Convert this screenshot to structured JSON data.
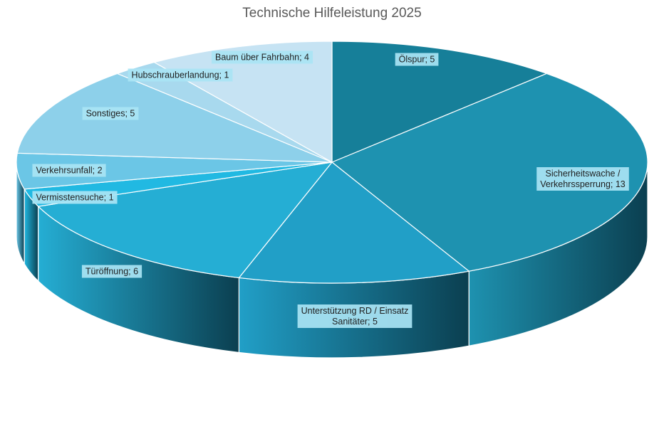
{
  "chart_data": {
    "type": "pie",
    "title": "Technische Hilfeleistung 2025",
    "slices": [
      {
        "label": [
          "Ölspur; 5"
        ],
        "value": 5,
        "color": "#167f99"
      },
      {
        "label": [
          "Sicherheitswache /",
          "Verkehrssperrung; 13"
        ],
        "value": 13,
        "color": "#1e92b0"
      },
      {
        "label": [
          "Unterstützung RD / Einsatz",
          "Sanitäter; 5"
        ],
        "value": 5,
        "color": "#219fc7"
      },
      {
        "label": [
          "Türöffnung; 6"
        ],
        "value": 6,
        "color": "#25aed4"
      },
      {
        "label": [
          "Vermisstensuche; 1"
        ],
        "value": 1,
        "color": "#21b9e2"
      },
      {
        "label": [
          "Verkehrsunfall; 2"
        ],
        "value": 2,
        "color": "#6bc6e6"
      },
      {
        "label": [
          "Sonstiges; 5"
        ],
        "value": 5,
        "color": "#8dd0ea"
      },
      {
        "label": [
          "Hubschrauberlandung; 1"
        ],
        "value": 1,
        "color": "#a8d9ee"
      },
      {
        "label": [
          "Baum über Fahrbahn; 4"
        ],
        "value": 4,
        "color": "#c6e3f3"
      }
    ]
  }
}
